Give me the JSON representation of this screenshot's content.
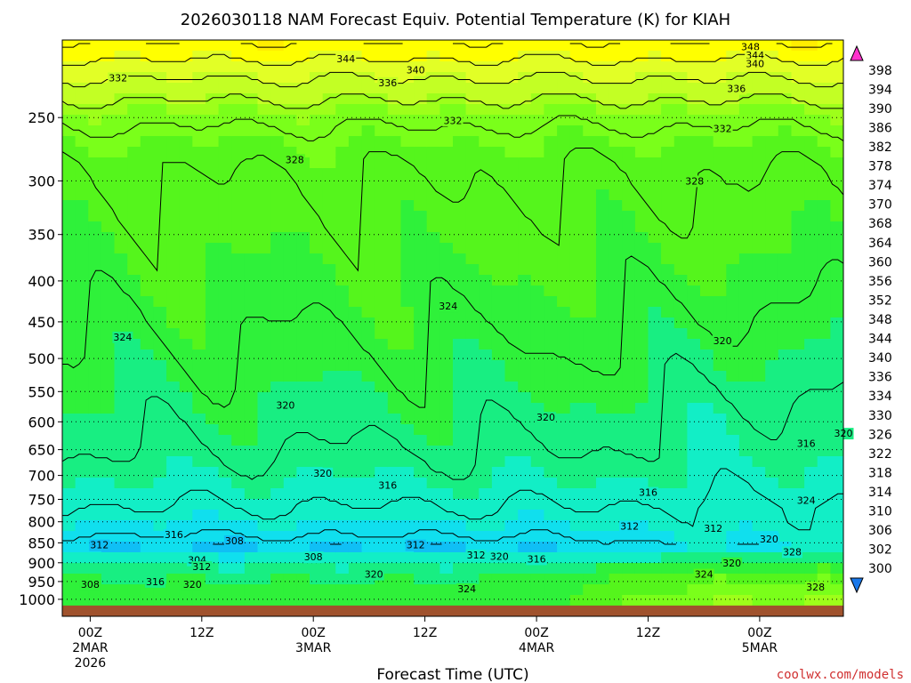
{
  "chart_data": {
    "type": "heatmap",
    "title": "2026030118 NAM Forecast Equiv. Potential Temperature (K) for KIAH",
    "xlabel": "Forecast Time (UTC)",
    "ylabel": "",
    "credit": "coolwx.com/models",
    "x_range_hours_from_first_label": [
      -3,
      81
    ],
    "y_axis": {
      "scale": "log",
      "inverted": true,
      "range_hpa": [
        1050,
        200
      ]
    },
    "pressure_ticks": [
      "250",
      "300",
      "350",
      "400",
      "450",
      "500",
      "550",
      "600",
      "650",
      "700",
      "750",
      "800",
      "850",
      "900",
      "950",
      "1000"
    ],
    "time_ticks": [
      {
        "hour": 0,
        "lines": [
          "00Z",
          "2MAR",
          "2026"
        ]
      },
      {
        "hour": 12,
        "lines": [
          "12Z"
        ]
      },
      {
        "hour": 24,
        "lines": [
          "00Z",
          "3MAR"
        ]
      },
      {
        "hour": 36,
        "lines": [
          "12Z"
        ]
      },
      {
        "hour": 48,
        "lines": [
          "00Z",
          "4MAR"
        ]
      },
      {
        "hour": 60,
        "lines": [
          "12Z"
        ]
      },
      {
        "hour": 72,
        "lines": [
          "00Z",
          "5MAR"
        ]
      }
    ],
    "colorbar": {
      "labels": [
        "398",
        "394",
        "390",
        "386",
        "382",
        "378",
        "374",
        "370",
        "368",
        "364",
        "360",
        "356",
        "352",
        "348",
        "344",
        "340",
        "336",
        "334",
        "330",
        "326",
        "322",
        "318",
        "314",
        "310",
        "306",
        "302",
        "300"
      ],
      "colors": [
        "#ff33cc",
        "#ff1fa6",
        "#ff1f80",
        "#ff1f5c",
        "#ff1f3a",
        "#ff1a1a",
        "#ff3300",
        "#ff5200",
        "#ff6c00",
        "#ff8a00",
        "#ffa300",
        "#ffbe00",
        "#ffd600",
        "#ffee00",
        "#ffff00",
        "#e2ff26",
        "#c3ff24",
        "#9eff1a",
        "#7aff1a",
        "#55f51c",
        "#2ff13a",
        "#18ee82",
        "#12eec6",
        "#10dfee",
        "#10bff5",
        "#1099f2",
        "#1a78ea"
      ],
      "extend": "both"
    },
    "contour_labels": [
      {
        "text": "348",
        "hour": 71,
        "p": 204
      },
      {
        "text": "344",
        "hour": 27.5,
        "p": 211
      },
      {
        "text": "344",
        "hour": 71.5,
        "p": 209
      },
      {
        "text": "340",
        "hour": 35,
        "p": 218
      },
      {
        "text": "340",
        "hour": 71.5,
        "p": 214
      },
      {
        "text": "336",
        "hour": 32,
        "p": 226
      },
      {
        "text": "336",
        "hour": 69.5,
        "p": 230
      },
      {
        "text": "332",
        "hour": 3,
        "p": 223
      },
      {
        "text": "332",
        "hour": 39,
        "p": 252
      },
      {
        "text": "332",
        "hour": 68,
        "p": 258
      },
      {
        "text": "328",
        "hour": 22,
        "p": 282
      },
      {
        "text": "328",
        "hour": 65,
        "p": 300
      },
      {
        "text": "324",
        "hour": 38.5,
        "p": 430
      },
      {
        "text": "324",
        "hour": 3.5,
        "p": 470
      },
      {
        "text": "320",
        "hour": 68,
        "p": 475
      },
      {
        "text": "320",
        "hour": 21,
        "p": 572
      },
      {
        "text": "320",
        "hour": 49,
        "p": 592
      },
      {
        "text": "316",
        "hour": 77,
        "p": 638
      },
      {
        "text": "320",
        "hour": 81,
        "p": 620
      },
      {
        "text": "320",
        "hour": 25,
        "p": 695
      },
      {
        "text": "316",
        "hour": 32,
        "p": 720
      },
      {
        "text": "316",
        "hour": 60,
        "p": 735
      },
      {
        "text": "312",
        "hour": 58,
        "p": 810
      },
      {
        "text": "312",
        "hour": 67,
        "p": 815
      },
      {
        "text": "316",
        "hour": 9,
        "p": 830
      },
      {
        "text": "320",
        "hour": 73,
        "p": 840
      },
      {
        "text": "308",
        "hour": 15.5,
        "p": 845
      },
      {
        "text": "312",
        "hour": 1,
        "p": 855
      },
      {
        "text": "312",
        "hour": 35,
        "p": 855
      },
      {
        "text": "324",
        "hour": 77,
        "p": 752
      },
      {
        "text": "328",
        "hour": 75.5,
        "p": 872
      },
      {
        "text": "312",
        "hour": 41.5,
        "p": 880
      },
      {
        "text": "320",
        "hour": 44,
        "p": 883
      },
      {
        "text": "316",
        "hour": 48,
        "p": 890
      },
      {
        "text": "308",
        "hour": 24,
        "p": 885
      },
      {
        "text": "304",
        "hour": 11.5,
        "p": 893
      },
      {
        "text": "320",
        "hour": 69,
        "p": 900
      },
      {
        "text": "312",
        "hour": 12,
        "p": 910
      },
      {
        "text": "324",
        "hour": 66,
        "p": 930
      },
      {
        "text": "320",
        "hour": 30.5,
        "p": 930
      },
      {
        "text": "308",
        "hour": 0,
        "p": 958
      },
      {
        "text": "316",
        "hour": 7,
        "p": 950
      },
      {
        "text": "320",
        "hour": 11,
        "p": 958
      },
      {
        "text": "324",
        "hour": 40.5,
        "p": 970
      },
      {
        "text": "328",
        "hour": 78,
        "p": 965
      }
    ],
    "ground_color": "#a0522d",
    "grid": {
      "style": "dotted",
      "on": true
    }
  }
}
